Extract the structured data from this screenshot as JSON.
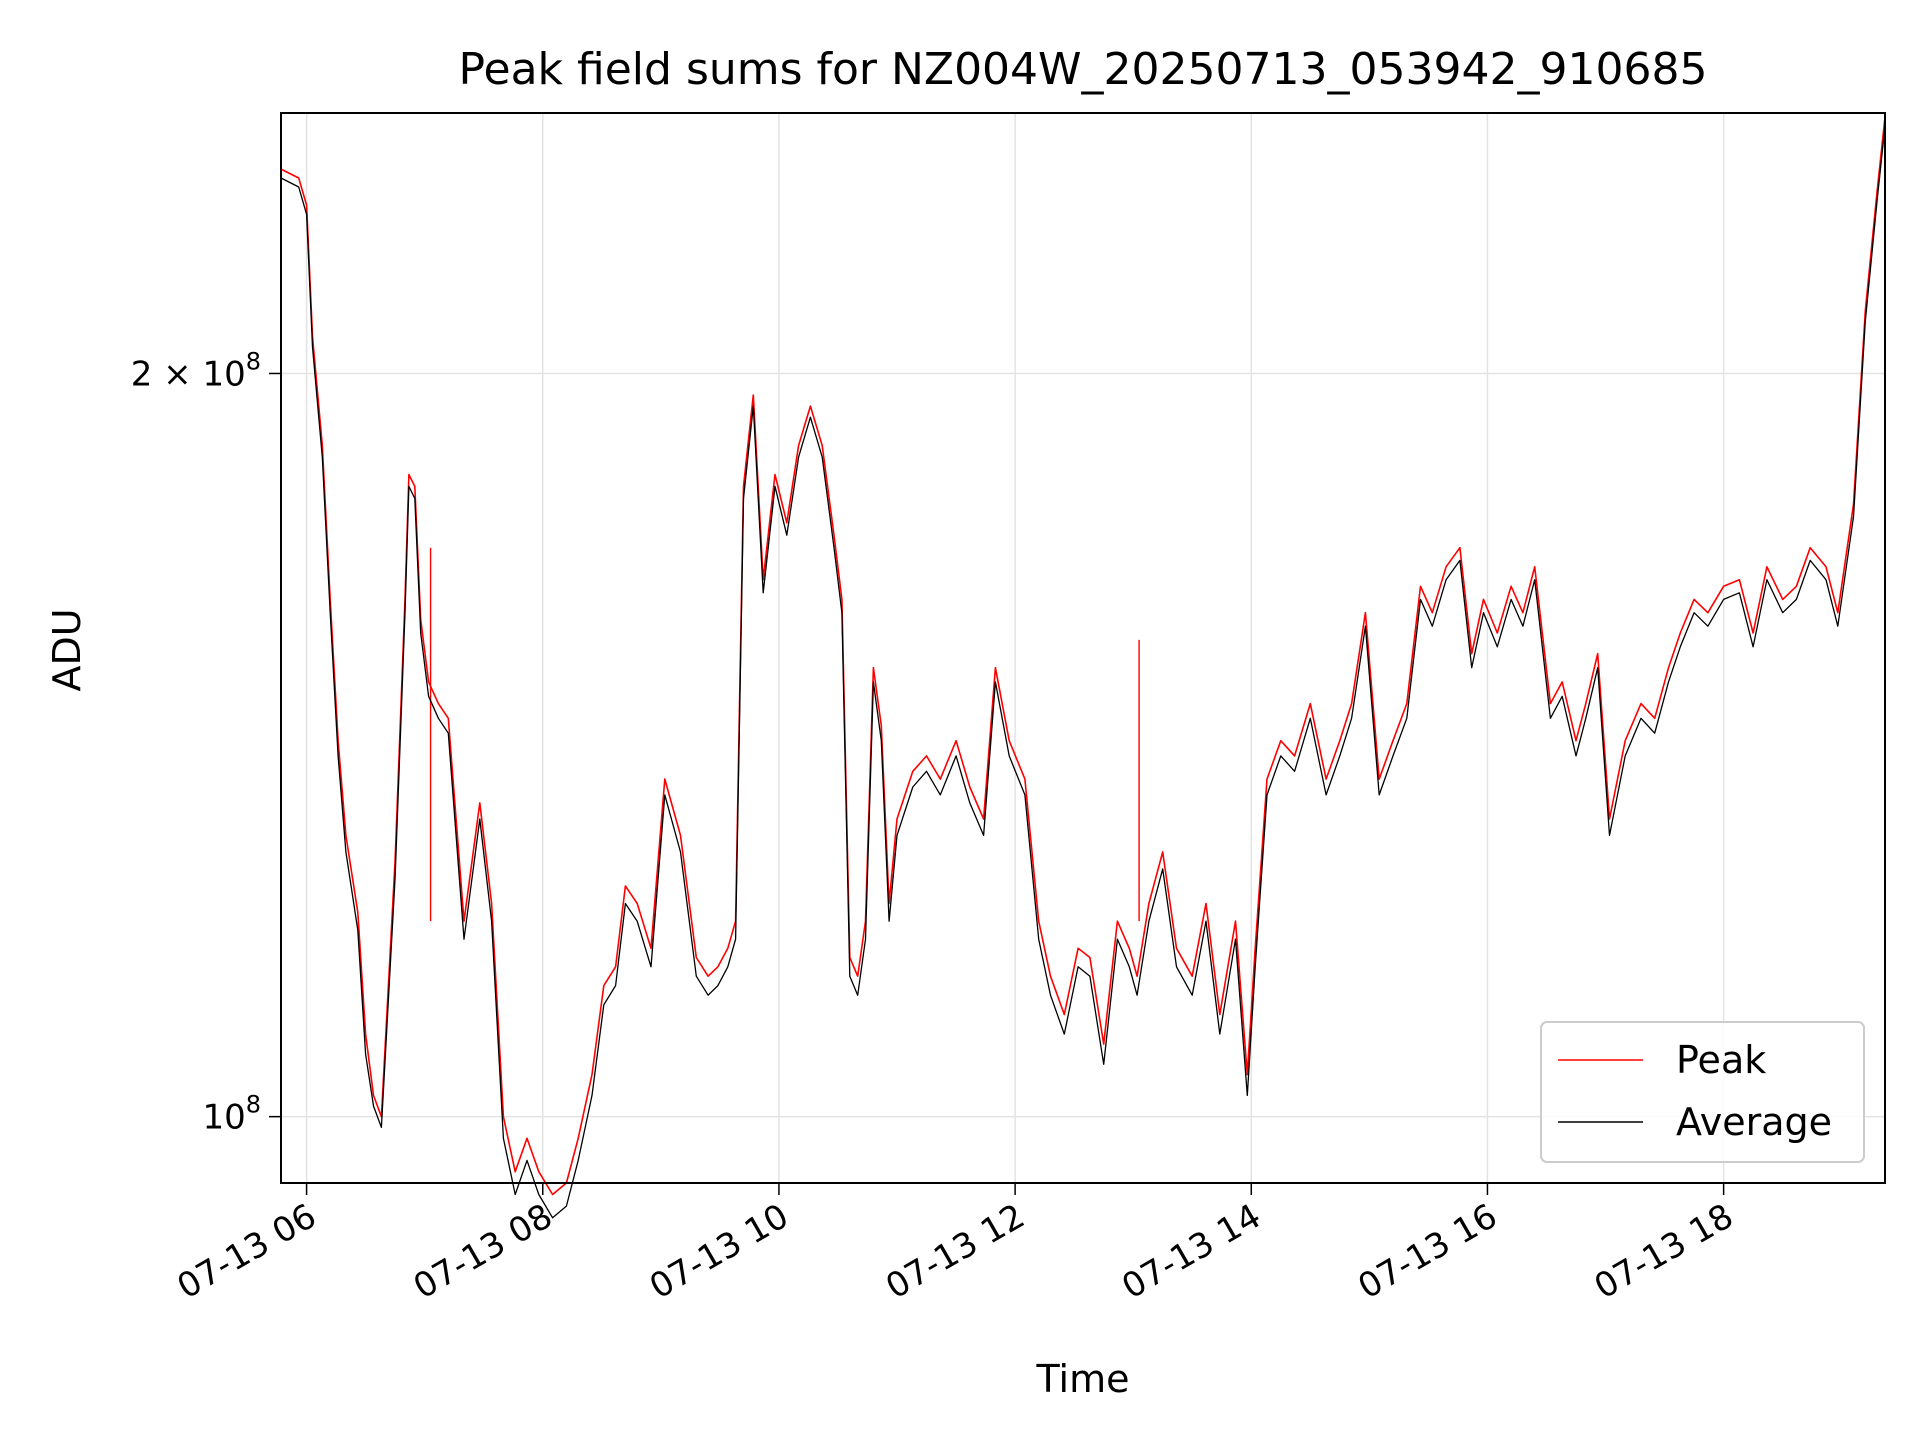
{
  "chart_data": {
    "type": "line",
    "title": "Peak field sums for NZ004W_20250713_053942_910685",
    "xlabel": "Time",
    "ylabel": "ADU",
    "yscale": "log",
    "ylim": [
      94000000.0,
      255000000.0
    ],
    "xlim": [
      "2025-07-13 05:47",
      "2025-07-13 19:22"
    ],
    "grid": true,
    "legend": {
      "placement": "lower-right",
      "entries": [
        "Peak",
        "Average"
      ]
    },
    "colors": {
      "Peak": "#ff0000",
      "Average": "#000000"
    },
    "x_ticks": [
      {
        "time": "2025-07-13 06:00",
        "label": "07-13 06"
      },
      {
        "time": "2025-07-13 08:00",
        "label": "07-13 08"
      },
      {
        "time": "2025-07-13 10:00",
        "label": "07-13 10"
      },
      {
        "time": "2025-07-13 12:00",
        "label": "07-13 12"
      },
      {
        "time": "2025-07-13 14:00",
        "label": "07-13 14"
      },
      {
        "time": "2025-07-13 16:00",
        "label": "07-13 16"
      },
      {
        "time": "2025-07-13 18:00",
        "label": "07-13 18"
      }
    ],
    "y_ticks": [
      {
        "value": 100000000,
        "mantissa": "",
        "exponent": "8"
      },
      {
        "value": 200000000,
        "mantissa": "2",
        "exponent": "8"
      }
    ],
    "series": [
      {
        "name": "Average",
        "x": [
          "05:47",
          "05:56",
          "06:00",
          "06:03",
          "06:08",
          "06:12",
          "06:16",
          "06:20",
          "06:26",
          "06:30",
          "06:34",
          "06:38",
          "06:45",
          "06:50",
          "06:52",
          "06:55",
          "06:58",
          "07:02",
          "07:07",
          "07:12",
          "07:20",
          "07:28",
          "07:34",
          "07:40",
          "07:46",
          "07:52",
          "07:58",
          "08:05",
          "08:12",
          "08:18",
          "08:25",
          "08:31",
          "08:37",
          "08:42",
          "08:48",
          "08:55",
          "09:02",
          "09:10",
          "09:18",
          "09:24",
          "09:29",
          "09:34",
          "09:38",
          "09:42",
          "09:47",
          "09:52",
          "09:58",
          "10:04",
          "10:10",
          "10:16",
          "10:22",
          "10:28",
          "10:32",
          "10:36",
          "10:40",
          "10:44",
          "10:48",
          "10:52",
          "10:56",
          "11:00",
          "11:08",
          "11:15",
          "11:22",
          "11:30",
          "11:37",
          "11:44",
          "11:50",
          "11:57",
          "12:05",
          "12:12",
          "12:18",
          "12:25",
          "12:32",
          "12:38",
          "12:45",
          "12:52",
          "12:58",
          "13:02",
          "13:08",
          "13:15",
          "13:22",
          "13:30",
          "13:37",
          "13:44",
          "13:52",
          "13:58",
          "14:02",
          "14:08",
          "14:15",
          "14:22",
          "14:30",
          "14:38",
          "14:45",
          "14:51",
          "14:58",
          "15:05",
          "15:12",
          "15:19",
          "15:26",
          "15:32",
          "15:39",
          "15:46",
          "15:52",
          "15:58",
          "16:05",
          "16:12",
          "16:18",
          "16:24",
          "16:32",
          "16:38",
          "16:45",
          "16:50",
          "16:56",
          "17:02",
          "17:10",
          "17:18",
          "17:25",
          "17:32",
          "17:38",
          "17:45",
          "17:52",
          "18:00",
          "18:08",
          "18:15",
          "18:22",
          "18:30",
          "18:37",
          "18:44",
          "18:52",
          "18:58",
          "19:06",
          "19:12",
          "19:18",
          "19:22"
        ],
        "values": [
          240,
          238,
          232,
          205,
          185,
          160,
          140,
          128,
          119,
          106,
          101,
          99,
          125,
          160,
          180,
          178,
          157,
          148,
          145,
          143,
          118,
          132,
          120,
          98,
          93,
          96,
          93,
          91,
          92,
          96,
          102,
          111,
          113,
          122,
          120,
          115,
          135,
          128,
          114,
          112,
          113,
          115,
          118,
          178,
          194,
          163,
          180,
          172,
          185,
          192,
          185,
          170,
          160,
          114,
          112,
          118,
          150,
          142,
          120,
          130,
          136,
          138,
          135,
          140,
          134,
          130,
          150,
          140,
          135,
          118,
          112,
          108,
          115,
          114,
          105,
          118,
          115,
          112,
          120,
          126,
          115,
          112,
          120,
          108,
          118,
          102,
          115,
          135,
          140,
          138,
          145,
          135,
          140,
          145,
          158,
          135,
          140,
          145,
          162,
          158,
          165,
          168,
          152,
          160,
          155,
          162,
          158,
          165,
          145,
          148,
          140,
          145,
          152,
          130,
          140,
          145,
          143,
          150,
          155,
          160,
          158,
          162,
          163,
          155,
          165,
          160,
          162,
          168,
          165,
          158,
          175,
          210,
          235,
          252
        ]
      },
      {
        "name": "Peak",
        "x": [
          "05:47",
          "05:56",
          "06:00",
          "06:03",
          "06:08",
          "06:12",
          "06:16",
          "06:20",
          "06:26",
          "06:30",
          "06:34",
          "06:38",
          "06:45",
          "06:50",
          "06:52",
          "06:55",
          "06:58",
          "07:02",
          "07:07",
          "07:12",
          "07:20",
          "07:28",
          "07:34",
          "07:40",
          "07:46",
          "07:52",
          "07:58",
          "08:05",
          "08:12",
          "08:18",
          "08:25",
          "08:31",
          "08:37",
          "08:42",
          "08:48",
          "08:55",
          "09:02",
          "09:10",
          "09:18",
          "09:24",
          "09:29",
          "09:34",
          "09:38",
          "09:42",
          "09:47",
          "09:52",
          "09:58",
          "10:04",
          "10:10",
          "10:16",
          "10:22",
          "10:28",
          "10:32",
          "10:36",
          "10:40",
          "10:44",
          "10:48",
          "10:52",
          "10:56",
          "11:00",
          "11:08",
          "11:15",
          "11:22",
          "11:30",
          "11:37",
          "11:44",
          "11:50",
          "11:57",
          "12:05",
          "12:12",
          "12:18",
          "12:25",
          "12:32",
          "12:38",
          "12:45",
          "12:52",
          "12:58",
          "13:02",
          "13:08",
          "13:15",
          "13:22",
          "13:30",
          "13:37",
          "13:44",
          "13:52",
          "13:58",
          "14:02",
          "14:08",
          "14:15",
          "14:22",
          "14:30",
          "14:38",
          "14:45",
          "14:51",
          "14:58",
          "15:05",
          "15:12",
          "15:19",
          "15:26",
          "15:32",
          "15:39",
          "15:46",
          "15:52",
          "15:58",
          "16:05",
          "16:12",
          "16:18",
          "16:24",
          "16:32",
          "16:38",
          "16:45",
          "16:50",
          "16:56",
          "17:02",
          "17:10",
          "17:18",
          "17:25",
          "17:32",
          "17:38",
          "17:45",
          "17:52",
          "18:00",
          "18:08",
          "18:15",
          "18:22",
          "18:30",
          "18:37",
          "18:44",
          "18:52",
          "18:58",
          "19:06",
          "19:12",
          "19:18",
          "19:22"
        ],
        "values": [
          242,
          240,
          234,
          207,
          187,
          162,
          142,
          130,
          121,
          108,
          102,
          100,
          127,
          162,
          182,
          180,
          159,
          150,
          147,
          145,
          120,
          134,
          122,
          100,
          95,
          98,
          95,
          93,
          94,
          98,
          104,
          113,
          115,
          124,
          122,
          117,
          137,
          130,
          116,
          114,
          115,
          117,
          120,
          180,
          196,
          165,
          182,
          174,
          187,
          194,
          187,
          172,
          162,
          116,
          114,
          120,
          152,
          144,
          122,
          132,
          138,
          140,
          137,
          142,
          136,
          132,
          152,
          142,
          137,
          120,
          114,
          110,
          117,
          116,
          107,
          120,
          117,
          114,
          122,
          128,
          117,
          114,
          122,
          110,
          120,
          104,
          117,
          137,
          142,
          140,
          147,
          137,
          142,
          147,
          160,
          137,
          142,
          147,
          164,
          160,
          167,
          170,
          154,
          162,
          157,
          164,
          160,
          167,
          147,
          150,
          142,
          147,
          154,
          132,
          142,
          147,
          145,
          152,
          157,
          162,
          160,
          164,
          165,
          157,
          167,
          162,
          164,
          170,
          167,
          160,
          177,
          212,
          237,
          254
        ],
        "spikes": [
          {
            "time": "07:03",
            "value": 170
          },
          {
            "time": "13:03",
            "value": 156
          }
        ]
      }
    ],
    "values_unit": "1e6 ADU"
  }
}
